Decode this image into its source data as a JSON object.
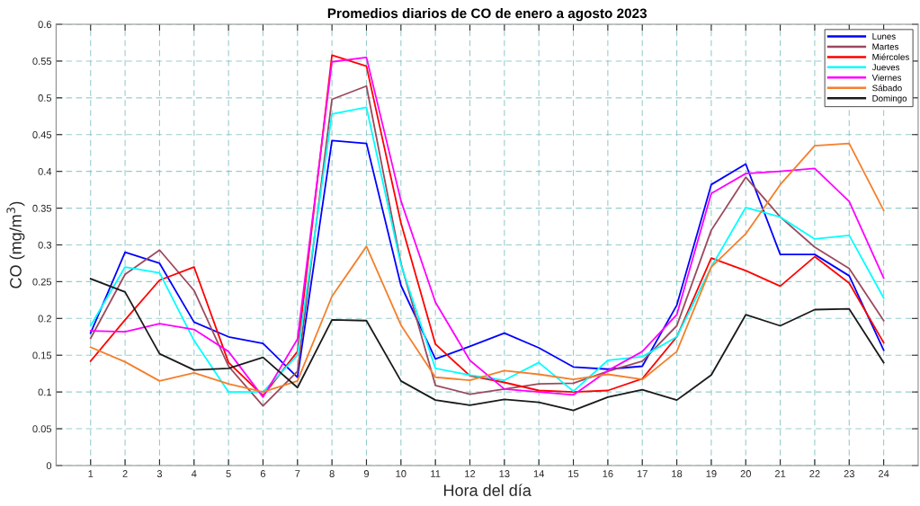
{
  "chart_data": {
    "type": "line",
    "title": "Promedios diarios de CO de enero a agosto 2023",
    "xlabel": "Hora del día",
    "ylabel": "CO (mg/m$^{3}$)",
    "x": [
      1,
      2,
      3,
      4,
      5,
      6,
      7,
      8,
      9,
      10,
      11,
      12,
      13,
      14,
      15,
      16,
      17,
      18,
      19,
      20,
      21,
      22,
      23,
      24
    ],
    "series": [
      {
        "name": "Lunes",
        "color": "#0000ff",
        "values": [
          0.18,
          0.29,
          0.275,
          0.195,
          0.175,
          0.166,
          0.12,
          0.442,
          0.438,
          0.245,
          0.145,
          0.162,
          0.18,
          0.16,
          0.134,
          0.131,
          0.135,
          0.218,
          0.382,
          0.41,
          0.287,
          0.287,
          0.258,
          0.157
        ]
      },
      {
        "name": "Martes",
        "color": "#9b4a5e",
        "values": [
          0.173,
          0.26,
          0.293,
          0.238,
          0.135,
          0.081,
          0.128,
          0.498,
          0.516,
          0.275,
          0.109,
          0.097,
          0.104,
          0.111,
          0.112,
          0.128,
          0.142,
          0.19,
          0.32,
          0.392,
          0.338,
          0.297,
          0.268,
          0.197
        ]
      },
      {
        "name": "Miércoles",
        "color": "#ff0000",
        "values": [
          0.142,
          0.198,
          0.252,
          0.27,
          0.14,
          0.095,
          0.155,
          0.558,
          0.543,
          0.33,
          0.165,
          0.122,
          0.113,
          0.102,
          0.1,
          0.102,
          0.118,
          0.175,
          0.282,
          0.265,
          0.244,
          0.284,
          0.248,
          0.167
        ]
      },
      {
        "name": "Jueves",
        "color": "#00ffff",
        "values": [
          0.19,
          0.27,
          0.262,
          0.17,
          0.1,
          0.1,
          0.15,
          0.478,
          0.487,
          0.273,
          0.132,
          0.123,
          0.116,
          0.14,
          0.101,
          0.143,
          0.148,
          0.175,
          0.27,
          0.351,
          0.338,
          0.308,
          0.313,
          0.228
        ]
      },
      {
        "name": "Viernes",
        "color": "#ff00ff",
        "values": [
          0.183,
          0.182,
          0.193,
          0.185,
          0.155,
          0.093,
          0.172,
          0.549,
          0.555,
          0.36,
          0.222,
          0.143,
          0.104,
          0.1,
          0.096,
          0.129,
          0.155,
          0.205,
          0.37,
          0.397,
          0.4,
          0.404,
          0.359,
          0.255
        ]
      },
      {
        "name": "Sábado",
        "color": "#f57f2a",
        "values": [
          0.161,
          0.141,
          0.115,
          0.126,
          0.111,
          0.1,
          0.115,
          0.23,
          0.298,
          0.191,
          0.12,
          0.116,
          0.129,
          0.124,
          0.117,
          0.124,
          0.117,
          0.155,
          0.27,
          0.315,
          0.382,
          0.435,
          0.438,
          0.347
        ]
      },
      {
        "name": "Domingo",
        "color": "#1a1a1a",
        "values": [
          0.254,
          0.236,
          0.152,
          0.13,
          0.132,
          0.147,
          0.106,
          0.198,
          0.197,
          0.115,
          0.089,
          0.082,
          0.09,
          0.086,
          0.075,
          0.093,
          0.103,
          0.089,
          0.123,
          0.205,
          0.19,
          0.212,
          0.213,
          0.14
        ]
      }
    ],
    "xlim": [
      0,
      25
    ],
    "xticks": [
      1,
      2,
      3,
      4,
      5,
      6,
      7,
      8,
      9,
      10,
      11,
      12,
      13,
      14,
      15,
      16,
      17,
      18,
      19,
      20,
      21,
      22,
      23,
      24
    ],
    "ylim": [
      0,
      0.6
    ],
    "yticks": [
      0,
      0.05,
      0.1,
      0.15,
      0.2,
      0.25,
      0.3,
      0.35,
      0.4,
      0.45,
      0.5,
      0.55,
      0.6
    ],
    "grid": true,
    "legend": "top right",
    "marker": "none",
    "line_style": "solid"
  }
}
